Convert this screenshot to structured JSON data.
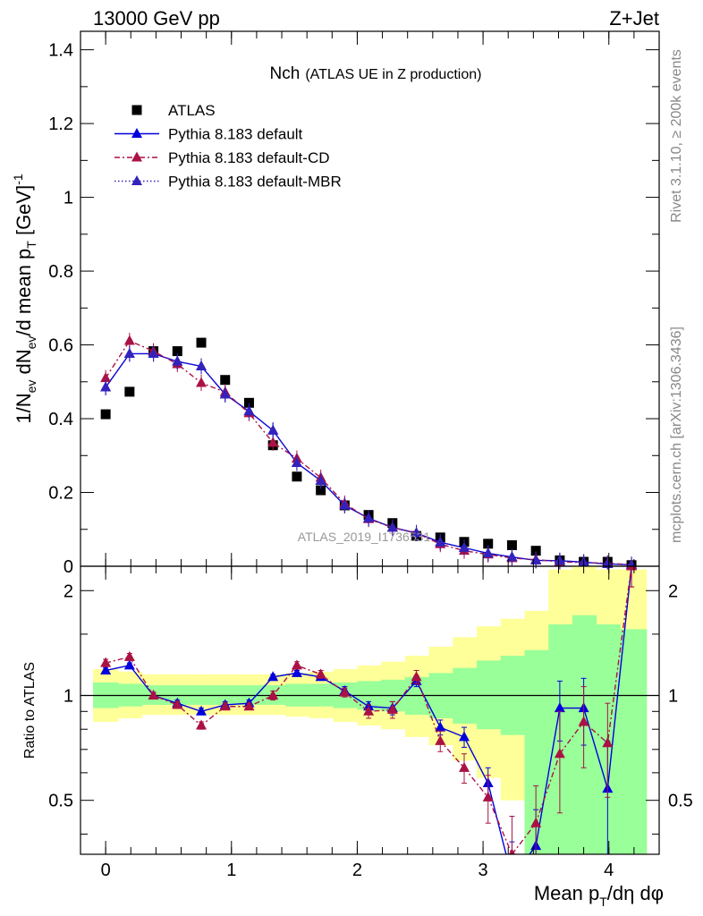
{
  "header": {
    "left": "13000 GeV pp",
    "right": "Z+Jet"
  },
  "side_labels": {
    "rivet": "Rivet 3.1.10, ≥ 200k events",
    "mcplots": "mcplots.cern.ch [arXiv:1306.3436]"
  },
  "watermark": "ATLAS_2019_I1736531",
  "chart_data": [
    {
      "panel": "main",
      "type": "line",
      "title": "Nch",
      "title_sub": "(ATLAS UE in Z production)",
      "ylabel": "1/N_ev dN_ev/d mean p_T [GeV]^-1",
      "ylabel_parts": {
        "a": "1/N",
        "b": "ev",
        "c": " dN",
        "d": "ev",
        "e": "/d mean p",
        "f": "T",
        "g": " [GeV]",
        "h": "-1"
      },
      "xlim": [
        -0.2,
        4.4
      ],
      "ylim": [
        0,
        1.45
      ],
      "yticks": [
        "0",
        "0.2",
        "0.4",
        "0.6",
        "0.8",
        "1",
        "1.2",
        "1.4"
      ],
      "x": [
        0.0,
        0.19,
        0.38,
        0.57,
        0.76,
        0.95,
        1.14,
        1.33,
        1.52,
        1.71,
        1.9,
        2.09,
        2.28,
        2.47,
        2.66,
        2.85,
        3.04,
        3.23,
        3.42,
        3.61,
        3.8,
        3.99,
        4.18
      ],
      "legend_position": "top-left",
      "series": [
        {
          "name": "ATLAS",
          "color": "#000000",
          "marker": "square",
          "values": [
            0.412,
            0.473,
            0.583,
            0.583,
            0.606,
            0.505,
            0.443,
            0.328,
            0.243,
            0.206,
            0.165,
            0.139,
            0.117,
            0.082,
            0.078,
            0.066,
            0.061,
            0.057,
            0.042,
            0.016,
            0.012,
            0.012,
            0.003
          ]
        },
        {
          "name": "Pythia 8.183 default",
          "color": "#0000dd",
          "marker": "triangle",
          "line": "solid",
          "values": [
            0.485,
            0.576,
            0.576,
            0.555,
            0.542,
            0.466,
            0.42,
            0.368,
            0.28,
            0.232,
            0.165,
            0.13,
            0.105,
            0.09,
            0.065,
            0.05,
            0.035,
            0.025,
            0.016,
            0.015,
            0.011,
            0.006,
            0.004
          ]
        },
        {
          "name": "Pythia 8.183 default-CD",
          "color": "#aa1144",
          "marker": "triangle",
          "line": "dashdot",
          "values": [
            0.51,
            0.611,
            0.583,
            0.548,
            0.497,
            0.472,
            0.415,
            0.335,
            0.292,
            0.24,
            0.17,
            0.128,
            0.105,
            0.09,
            0.06,
            0.042,
            0.032,
            0.022,
            0.018,
            0.012,
            0.01,
            0.008,
            0.004
          ]
        },
        {
          "name": "Pythia 8.183 default-MBR",
          "color": "#3322bb",
          "marker": "triangle",
          "line": "dotted",
          "values": [
            0.485,
            0.576,
            0.576,
            0.555,
            0.542,
            0.466,
            0.42,
            0.368,
            0.28,
            0.232,
            0.165,
            0.13,
            0.105,
            0.09,
            0.065,
            0.05,
            0.035,
            0.025,
            0.016,
            0.015,
            0.011,
            0.006,
            0.004
          ]
        }
      ]
    },
    {
      "panel": "ratio",
      "type": "line",
      "ylabel": "Ratio to ATLAS",
      "xlabel": "Mean p_T/dη dφ",
      "xlabel_parts": {
        "a": "Mean p",
        "b": "T",
        "c": "/dη dφ"
      },
      "xlim": [
        -0.2,
        4.4
      ],
      "ylim": [
        0.35,
        2.35
      ],
      "xticks": [
        "0",
        "1",
        "2",
        "3",
        "4"
      ],
      "yticks": [
        "0.5",
        "1",
        "2"
      ],
      "x": [
        0.0,
        0.19,
        0.38,
        0.57,
        0.76,
        0.95,
        1.14,
        1.33,
        1.52,
        1.71,
        1.9,
        2.09,
        2.28,
        2.47,
        2.66,
        2.85,
        3.04,
        3.23,
        3.42,
        3.61,
        3.8,
        3.99,
        4.18
      ],
      "band_edges": [
        -0.1,
        0.1,
        0.29,
        0.48,
        0.67,
        0.86,
        1.05,
        1.24,
        1.43,
        1.62,
        1.81,
        2.0,
        2.19,
        2.38,
        2.57,
        2.76,
        2.95,
        3.14,
        3.33,
        3.52,
        3.71,
        3.9,
        4.09,
        4.3
      ],
      "band_1sigma": {
        "color": "#99ff99",
        "lower": [
          0.92,
          0.93,
          0.94,
          0.94,
          0.94,
          0.94,
          0.94,
          0.94,
          0.93,
          0.93,
          0.92,
          0.91,
          0.9,
          0.88,
          0.86,
          0.83,
          0.8,
          0.77,
          0.35,
          0.35,
          0.35,
          0.35,
          0.35
        ],
        "upper": [
          1.09,
          1.08,
          1.07,
          1.07,
          1.07,
          1.07,
          1.07,
          1.07,
          1.08,
          1.08,
          1.09,
          1.1,
          1.11,
          1.13,
          1.16,
          1.2,
          1.26,
          1.3,
          1.35,
          1.6,
          1.7,
          1.6,
          1.55
        ]
      },
      "band_2sigma": {
        "color": "#ffff99",
        "lower": [
          0.84,
          0.86,
          0.88,
          0.88,
          0.88,
          0.88,
          0.88,
          0.88,
          0.87,
          0.86,
          0.84,
          0.82,
          0.8,
          0.76,
          0.72,
          0.65,
          0.58,
          0.5,
          0.35,
          0.35,
          0.35,
          0.35,
          0.35
        ],
        "upper": [
          1.19,
          1.17,
          1.15,
          1.15,
          1.15,
          1.15,
          1.15,
          1.15,
          1.16,
          1.17,
          1.19,
          1.22,
          1.25,
          1.3,
          1.38,
          1.47,
          1.58,
          1.66,
          1.75,
          2.3,
          2.4,
          2.3,
          2.3
        ]
      },
      "reference_line": 1,
      "series": [
        {
          "name": "Pythia 8.183 default",
          "color": "#0000dd",
          "marker": "triangle",
          "line": "solid",
          "values": [
            1.18,
            1.22,
            1.0,
            0.95,
            0.9,
            0.94,
            0.95,
            1.13,
            1.16,
            1.13,
            1.03,
            0.93,
            0.92,
            1.1,
            0.81,
            0.76,
            0.56,
            0.3,
            0.37,
            0.92,
            0.92,
            0.54,
            2.35
          ],
          "err": [
            0.02,
            0.02,
            0.02,
            0.02,
            0.02,
            0.02,
            0.02,
            0.02,
            0.02,
            0.02,
            0.03,
            0.03,
            0.04,
            0.04,
            0.04,
            0.05,
            0.06,
            0.08,
            0.1,
            0.18,
            0.2,
            0.2,
            0.3
          ]
        },
        {
          "name": "Pythia 8.183 default-CD",
          "color": "#aa1144",
          "marker": "triangle",
          "line": "dashdot",
          "values": [
            1.24,
            1.29,
            1.0,
            0.94,
            0.82,
            0.93,
            0.93,
            1.0,
            1.22,
            1.15,
            1.02,
            0.9,
            0.91,
            1.13,
            0.74,
            0.62,
            0.51,
            0.35,
            0.43,
            0.68,
            0.84,
            0.73,
            2.35
          ],
          "err": [
            0.03,
            0.03,
            0.02,
            0.02,
            0.02,
            0.02,
            0.02,
            0.03,
            0.03,
            0.03,
            0.03,
            0.04,
            0.05,
            0.05,
            0.05,
            0.06,
            0.08,
            0.1,
            0.12,
            0.22,
            0.22,
            0.22,
            0.3
          ]
        }
      ]
    }
  ]
}
